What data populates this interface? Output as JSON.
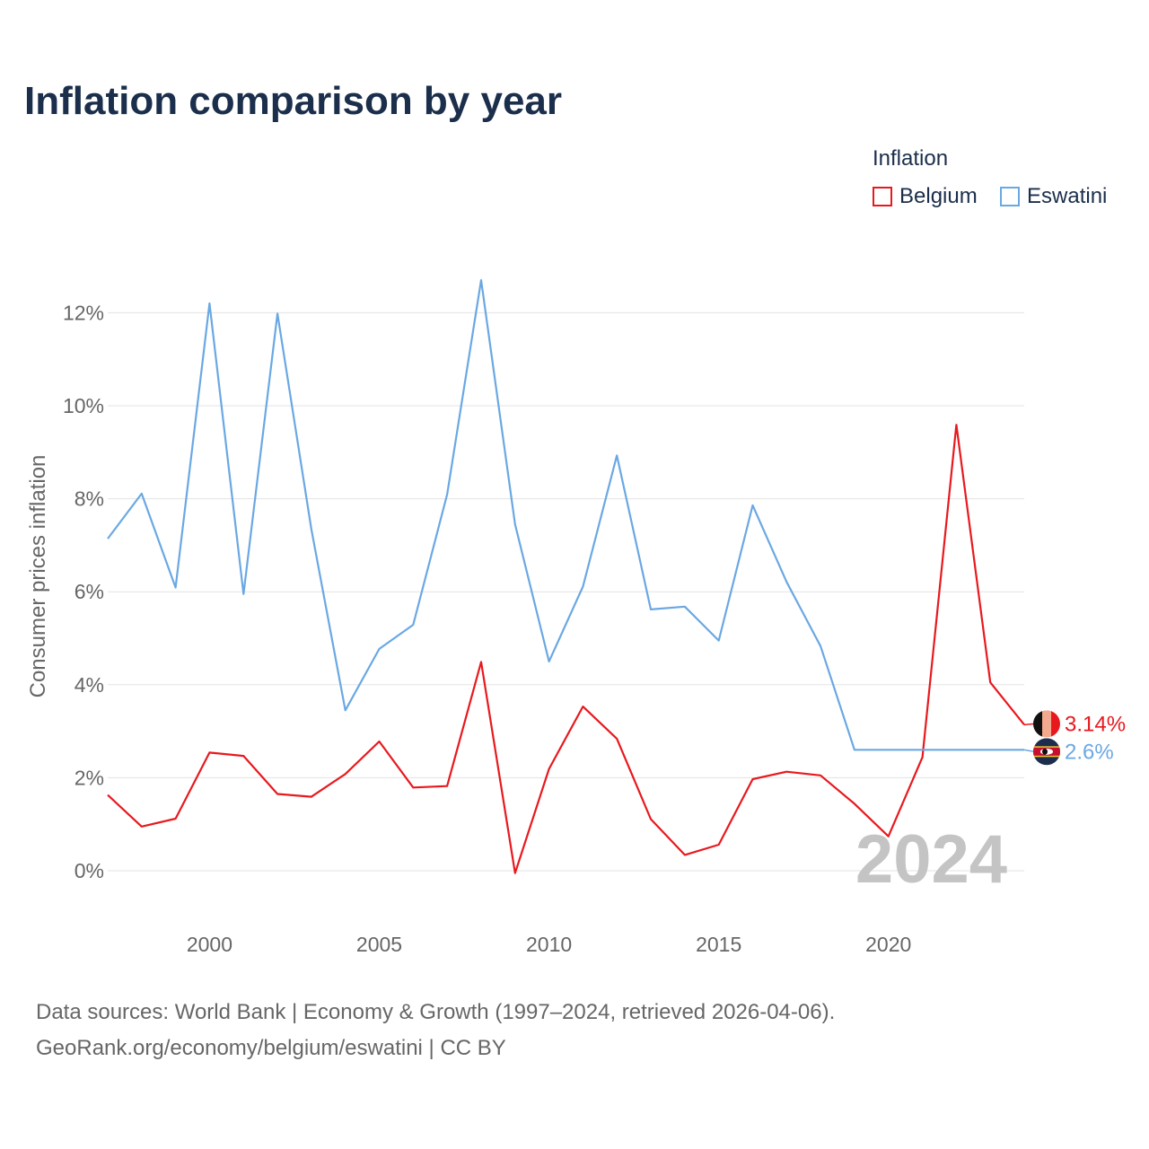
{
  "title": "Inflation comparison by year",
  "legend": {
    "title": "Inflation",
    "items": [
      {
        "name": "Belgium",
        "color": "#e8191e"
      },
      {
        "name": "Eswatini",
        "color": "#6aa8e3"
      }
    ]
  },
  "year_watermark": "2024",
  "footer": {
    "line1": "Data sources: World Bank | Economy & Growth (1997–2024, retrieved 2026-04-06).",
    "line2": "GeoRank.org/economy/belgium/eswatini | CC BY"
  },
  "chart_data": {
    "type": "line",
    "title": "Inflation comparison by year",
    "xlabel": "",
    "ylabel": "Consumer prices inflation",
    "xlim": [
      1997,
      2024
    ],
    "ylim": [
      -1.2,
      13.5
    ],
    "x_ticks": [
      2000,
      2005,
      2010,
      2015,
      2020
    ],
    "x_tick_labels": [
      "2000",
      "2005",
      "2010",
      "2015",
      "2020"
    ],
    "y_ticks": [
      0,
      2,
      4,
      6,
      8,
      10,
      12
    ],
    "y_tick_labels": [
      "0%",
      "2%",
      "4%",
      "6%",
      "8%",
      "10%",
      "12%"
    ],
    "grid": true,
    "legend_position": "top-right",
    "x": [
      1997,
      1998,
      1999,
      2000,
      2001,
      2002,
      2003,
      2004,
      2005,
      2006,
      2007,
      2008,
      2009,
      2010,
      2011,
      2012,
      2013,
      2014,
      2015,
      2016,
      2017,
      2018,
      2019,
      2020,
      2021,
      2022,
      2023,
      2024
    ],
    "series": [
      {
        "name": "Belgium",
        "color": "#e8191e",
        "end_label": "3.14%",
        "values": [
          1.63,
          0.95,
          1.12,
          2.54,
          2.47,
          1.65,
          1.59,
          2.08,
          2.78,
          1.79,
          1.82,
          4.49,
          -0.05,
          2.19,
          3.53,
          2.84,
          1.11,
          0.34,
          0.56,
          1.97,
          2.13,
          2.05,
          1.44,
          0.74,
          2.44,
          9.59,
          4.05,
          3.14
        ]
      },
      {
        "name": "Eswatini",
        "color": "#6aa8e3",
        "end_label": "2.6%",
        "values": [
          7.14,
          8.11,
          6.09,
          12.2,
          5.95,
          11.98,
          7.34,
          3.45,
          4.77,
          5.29,
          8.09,
          12.7,
          7.45,
          4.5,
          6.11,
          8.93,
          5.62,
          5.68,
          4.95,
          7.86,
          6.21,
          4.83,
          2.6,
          2.6,
          2.6,
          2.6,
          2.6,
          2.6
        ]
      }
    ]
  }
}
